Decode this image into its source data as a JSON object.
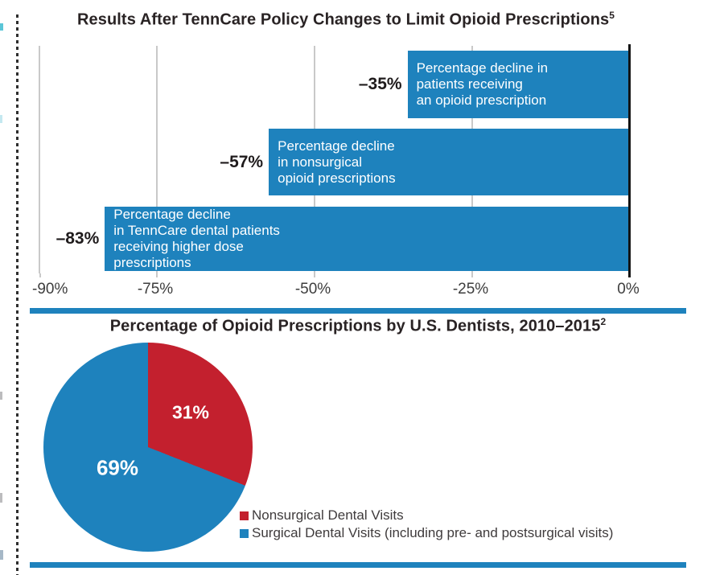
{
  "chart_data": [
    {
      "type": "bar",
      "orientation": "horizontal",
      "title": "Results After TennCare Policy Changes to Limit Opioid Prescriptions",
      "title_superscript": "5",
      "bar_color": "#1e82bd",
      "grid": true,
      "axis_range": [
        -90,
        0
      ],
      "gridline_values": [
        -75,
        -50,
        -25
      ],
      "x_ticks": [
        {
          "label": "-90%",
          "value": -90,
          "label_align": "left"
        },
        {
          "label": "-75%",
          "value": -75
        },
        {
          "label": "-50%",
          "value": -50
        },
        {
          "label": "-25%",
          "value": -25
        },
        {
          "label": "0%",
          "value": 0
        }
      ],
      "bars": [
        {
          "value": -35,
          "value_label": "–35%",
          "text": "Percentage decline in\npatients receiving\nan opioid prescription"
        },
        {
          "value": -57,
          "value_label": "–57%",
          "text": "Percentage decline\nin nonsurgical\nopioid prescriptions"
        },
        {
          "value": -83,
          "value_label": "–83%",
          "text": "Percentage decline\nin TennCare dental patients\nreceiving higher dose\nprescriptions"
        }
      ]
    },
    {
      "type": "pie",
      "title": "Percentage of Opioid Prescriptions by U.S. Dentists, 2010–2015",
      "title_superscript": "2",
      "start_angle_deg": 0,
      "direction": "clockwise",
      "slices": [
        {
          "label": "31%",
          "value": 31,
          "color": "#c3202e",
          "name": "Nonsurgical Dental Visits"
        },
        {
          "label": "69%",
          "value": 69,
          "color": "#1e82bd",
          "name": "Surgical Dental Visits (including pre- and postsurgical visits)"
        }
      ],
      "legend_position": "bottom-right"
    }
  ],
  "colors": {
    "accent_blue": "#1e82bd",
    "accent_red": "#c3202e",
    "gridline": "#c9c9c9",
    "axis_black": "#141414"
  }
}
